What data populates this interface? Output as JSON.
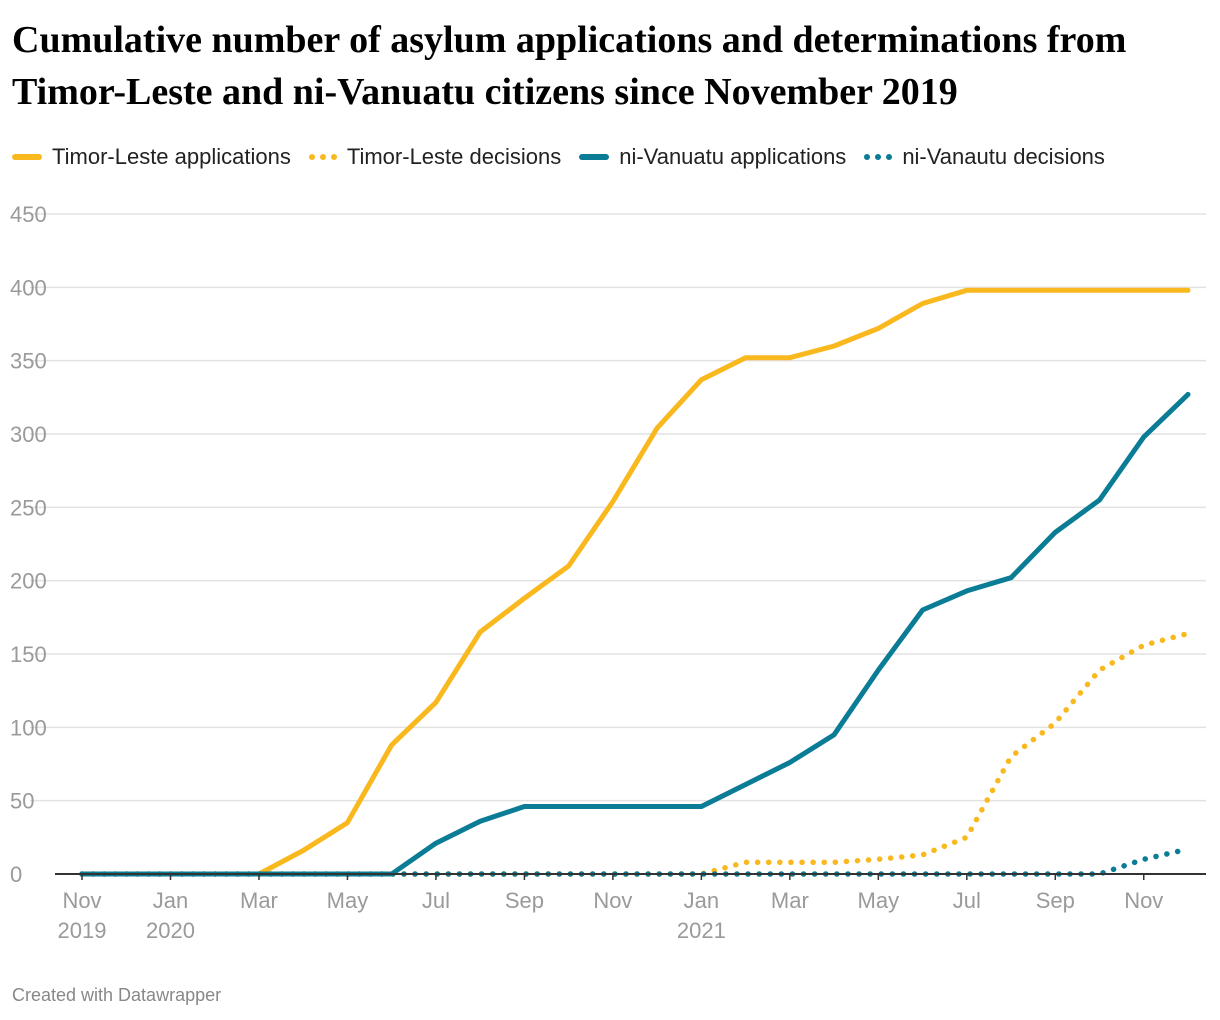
{
  "title": "Cumulative number of asylum applications and determinations from Timor-Leste and ni-Vanuatu citizens since November 2019",
  "footer": "Created with Datawrapper",
  "chart_data": {
    "type": "line",
    "title": "Cumulative number of asylum applications and determinations from Timor-Leste and ni-Vanuatu citizens since November 2019",
    "xlabel": "",
    "ylabel": "",
    "ylim": [
      0,
      450
    ],
    "yticks": [
      0,
      50,
      100,
      150,
      200,
      250,
      300,
      350,
      400,
      450
    ],
    "grid": true,
    "legend_position": "top",
    "x": [
      "Nov 2019",
      "Dec 2019",
      "Jan 2020",
      "Feb 2020",
      "Mar 2020",
      "Apr 2020",
      "May 2020",
      "Jun 2020",
      "Jul 2020",
      "Aug 2020",
      "Sep 2020",
      "Oct 2020",
      "Nov 2020",
      "Dec 2020",
      "Jan 2021",
      "Feb 2021",
      "Mar 2021",
      "Apr 2021",
      "May 2021",
      "Jun 2021",
      "Jul 2021",
      "Aug 2021",
      "Sep 2021",
      "Oct 2021",
      "Nov 2021",
      "Dec 2021"
    ],
    "xticks": [
      {
        "index": 0,
        "line1": "Nov",
        "line2": "2019"
      },
      {
        "index": 2,
        "line1": "Jan",
        "line2": "2020"
      },
      {
        "index": 4,
        "line1": "Mar",
        "line2": ""
      },
      {
        "index": 6,
        "line1": "May",
        "line2": ""
      },
      {
        "index": 8,
        "line1": "Jul",
        "line2": ""
      },
      {
        "index": 10,
        "line1": "Sep",
        "line2": ""
      },
      {
        "index": 12,
        "line1": "Nov",
        "line2": ""
      },
      {
        "index": 14,
        "line1": "Jan",
        "line2": "2021"
      },
      {
        "index": 16,
        "line1": "Mar",
        "line2": ""
      },
      {
        "index": 18,
        "line1": "May",
        "line2": ""
      },
      {
        "index": 20,
        "line1": "Jul",
        "line2": ""
      },
      {
        "index": 22,
        "line1": "Sep",
        "line2": ""
      },
      {
        "index": 24,
        "line1": "Nov",
        "line2": ""
      }
    ],
    "series": [
      {
        "name": "Timor-Leste applications",
        "color": "#f9b81e",
        "style": "solid",
        "values": [
          0,
          0,
          0,
          0,
          0,
          16,
          35,
          88,
          117,
          165,
          188,
          210,
          254,
          304,
          337,
          352,
          352,
          360,
          372,
          389,
          398,
          398,
          398,
          398,
          398,
          398
        ]
      },
      {
        "name": "Timor-Leste decisions",
        "color": "#f9b81e",
        "style": "dotted",
        "values": [
          0,
          0,
          0,
          0,
          0,
          0,
          0,
          0,
          0,
          0,
          0,
          0,
          0,
          0,
          0,
          8,
          8,
          8,
          10,
          13,
          25,
          80,
          103,
          139,
          156,
          164
        ]
      },
      {
        "name": "ni-Vanuatu applications",
        "color": "#0a7c95",
        "style": "solid",
        "values": [
          0,
          0,
          0,
          0,
          0,
          0,
          0,
          0,
          21,
          36,
          46,
          46,
          46,
          46,
          46,
          61,
          76,
          95,
          139,
          180,
          193,
          202,
          233,
          255,
          298,
          327
        ]
      },
      {
        "name": "ni-Vanautu decisions",
        "color": "#0a7c95",
        "style": "dotted",
        "values": [
          0,
          0,
          0,
          0,
          0,
          0,
          0,
          0,
          0,
          0,
          0,
          0,
          0,
          0,
          0,
          0,
          0,
          0,
          0,
          0,
          0,
          0,
          0,
          0,
          10,
          17
        ]
      }
    ]
  }
}
